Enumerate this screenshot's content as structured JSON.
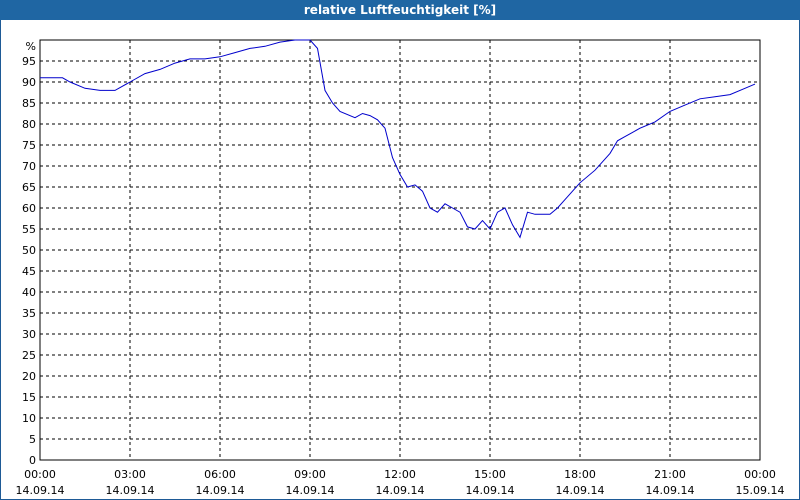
{
  "chart_data": {
    "type": "line",
    "title": "relative Luftfeuchtigkeit [%]",
    "y_unit_label": "%",
    "ylim": [
      0,
      100
    ],
    "y_ticks": [
      0,
      5,
      10,
      15,
      20,
      25,
      30,
      35,
      40,
      45,
      50,
      55,
      60,
      65,
      70,
      75,
      80,
      85,
      90,
      95
    ],
    "x_ticks": [
      {
        "time": "00:00",
        "date": "14.09.14"
      },
      {
        "time": "03:00",
        "date": "14.09.14"
      },
      {
        "time": "06:00",
        "date": "14.09.14"
      },
      {
        "time": "09:00",
        "date": "14.09.14"
      },
      {
        "time": "12:00",
        "date": "14.09.14"
      },
      {
        "time": "15:00",
        "date": "14.09.14"
      },
      {
        "time": "18:00",
        "date": "14.09.14"
      },
      {
        "time": "21:00",
        "date": "14.09.14"
      },
      {
        "time": "00:00",
        "date": "15.09.14"
      }
    ],
    "xlim": [
      "14.09.14 00:00",
      "15.09.14 00:00"
    ],
    "grid": true,
    "line_color": "#0000cc",
    "series": [
      {
        "x": [
          "00:00",
          "00:45",
          "01:00",
          "01:30",
          "02:00",
          "02:30",
          "03:00",
          "03:30",
          "04:00",
          "04:30",
          "05:00",
          "05:30",
          "06:00",
          "06:30",
          "07:00",
          "07:30",
          "08:00",
          "08:30",
          "09:00",
          "09:15",
          "09:30",
          "09:45",
          "10:00",
          "10:30",
          "10:45",
          "11:00",
          "11:15",
          "11:30",
          "11:45",
          "12:00",
          "12:15",
          "12:30",
          "12:45",
          "13:00",
          "13:15",
          "13:30",
          "13:45",
          "14:00",
          "14:15",
          "14:30",
          "14:45",
          "15:00",
          "15:15",
          "15:30",
          "15:45",
          "16:00",
          "16:15",
          "16:30",
          "17:00",
          "17:15",
          "17:30",
          "17:45",
          "18:00",
          "18:30",
          "19:00",
          "19:15",
          "19:30",
          "19:45",
          "20:00",
          "20:30",
          "21:00",
          "21:30",
          "22:00",
          "22:30",
          "23:00",
          "23:30",
          "23:50"
        ],
        "values": [
          91,
          91,
          90,
          88.5,
          88,
          88,
          90,
          92,
          93,
          94.5,
          95.5,
          95.5,
          96,
          97,
          98,
          98.5,
          99.5,
          100,
          100,
          98,
          88,
          85,
          83,
          81.5,
          82.5,
          82,
          81,
          79,
          72,
          68,
          65,
          65.5,
          64,
          60,
          59,
          61,
          60,
          59,
          55.5,
          55,
          57,
          55,
          59,
          60,
          56,
          53,
          59,
          58.5,
          58.5,
          60,
          62,
          64,
          66,
          69,
          73,
          76,
          77,
          78,
          79,
          80.5,
          83,
          84.5,
          86,
          86.5,
          87,
          88.5,
          89.5
        ]
      }
    ]
  }
}
